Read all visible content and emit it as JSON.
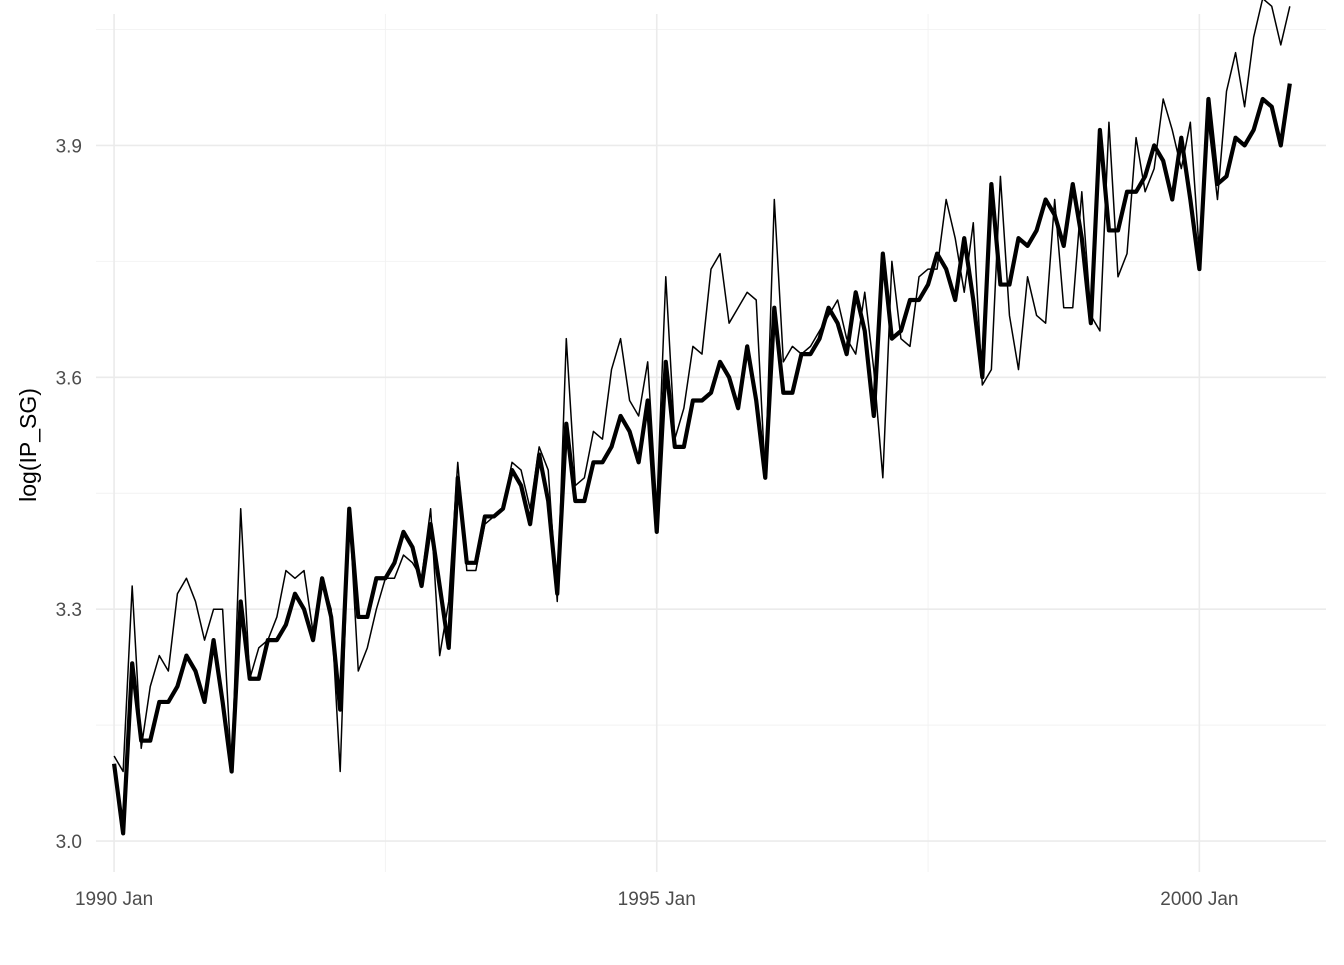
{
  "chart_data": {
    "type": "line",
    "title": "",
    "xlabel": "",
    "ylabel": "log(IP_SG)",
    "x_start": "1990 Jan",
    "x_end": "2000 Nov",
    "xlim": [
      "1989 Nov",
      "2001 Mar"
    ],
    "ylim": [
      2.96,
      4.07
    ],
    "x_ticks": [
      "1990 Jan",
      "1995 Jan",
      "2000 Jan"
    ],
    "y_ticks": [
      "3.0",
      "3.3",
      "3.6",
      "3.9"
    ],
    "grid": true,
    "legend": "none",
    "colors": {
      "line": "#000000",
      "grid": "#ebebeb",
      "background": "#ffffff"
    },
    "series": [
      {
        "style": "thin",
        "values": [
          3.11,
          3.09,
          3.33,
          3.12,
          3.2,
          3.24,
          3.22,
          3.32,
          3.34,
          3.31,
          3.26,
          3.3,
          3.3,
          3.09,
          3.43,
          3.21,
          3.25,
          3.26,
          3.29,
          3.35,
          3.34,
          3.35,
          3.27,
          3.34,
          3.3,
          3.09,
          3.43,
          3.22,
          3.25,
          3.3,
          3.34,
          3.34,
          3.37,
          3.36,
          3.34,
          3.43,
          3.24,
          3.31,
          3.49,
          3.35,
          3.35,
          3.41,
          3.42,
          3.43,
          3.49,
          3.48,
          3.43,
          3.51,
          3.48,
          3.31,
          3.65,
          3.46,
          3.47,
          3.53,
          3.52,
          3.61,
          3.65,
          3.57,
          3.55,
          3.62,
          3.43,
          3.73,
          3.52,
          3.56,
          3.64,
          3.63,
          3.74,
          3.76,
          3.67,
          3.69,
          3.71,
          3.7,
          3.47,
          3.83,
          3.62,
          3.64,
          3.63,
          3.64,
          3.66,
          3.68,
          3.7,
          3.65,
          3.63,
          3.71,
          3.61,
          3.47,
          3.75,
          3.65,
          3.64,
          3.73,
          3.74,
          3.74,
          3.83,
          3.78,
          3.71,
          3.8,
          3.59,
          3.61,
          3.86,
          3.68,
          3.61,
          3.73,
          3.68,
          3.67,
          3.83,
          3.69,
          3.69,
          3.84,
          3.68,
          3.66,
          3.93,
          3.73,
          3.76,
          3.91,
          3.84,
          3.87,
          3.96,
          3.92,
          3.87,
          3.93,
          3.76,
          3.93,
          3.83,
          3.97,
          4.02,
          3.95,
          4.04,
          4.09,
          4.08,
          4.03,
          4.08
        ]
      },
      {
        "style": "thick",
        "values": [
          3.1,
          3.01,
          3.23,
          3.13,
          3.13,
          3.18,
          3.18,
          3.2,
          3.24,
          3.22,
          3.18,
          3.26,
          3.18,
          3.09,
          3.31,
          3.21,
          3.21,
          3.26,
          3.26,
          3.28,
          3.32,
          3.3,
          3.26,
          3.34,
          3.29,
          3.17,
          3.43,
          3.29,
          3.29,
          3.34,
          3.34,
          3.36,
          3.4,
          3.38,
          3.33,
          3.41,
          3.33,
          3.25,
          3.47,
          3.36,
          3.36,
          3.42,
          3.42,
          3.43,
          3.48,
          3.46,
          3.41,
          3.5,
          3.44,
          3.32,
          3.54,
          3.44,
          3.44,
          3.49,
          3.49,
          3.51,
          3.55,
          3.53,
          3.49,
          3.57,
          3.4,
          3.62,
          3.51,
          3.51,
          3.57,
          3.57,
          3.58,
          3.62,
          3.6,
          3.56,
          3.64,
          3.57,
          3.47,
          3.69,
          3.58,
          3.58,
          3.63,
          3.63,
          3.65,
          3.69,
          3.67,
          3.63,
          3.71,
          3.66,
          3.55,
          3.76,
          3.65,
          3.66,
          3.7,
          3.7,
          3.72,
          3.76,
          3.74,
          3.7,
          3.78,
          3.7,
          3.6,
          3.85,
          3.72,
          3.72,
          3.78,
          3.77,
          3.79,
          3.83,
          3.81,
          3.77,
          3.85,
          3.78,
          3.67,
          3.92,
          3.79,
          3.79,
          3.84,
          3.84,
          3.86,
          3.9,
          3.88,
          3.83,
          3.91,
          3.83,
          3.74,
          3.96,
          3.85,
          3.86,
          3.91,
          3.9,
          3.92,
          3.96,
          3.95,
          3.9,
          3.98
        ]
      }
    ]
  }
}
